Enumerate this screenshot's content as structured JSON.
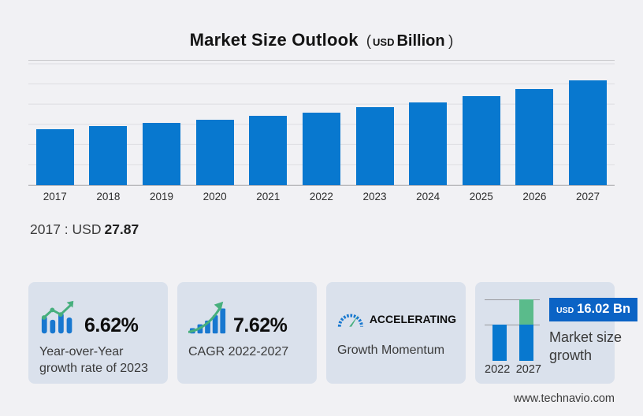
{
  "title": {
    "text": "Market Size Outlook",
    "unit_prefix": "(",
    "unit_currency": "USD",
    "unit_label": "Billion",
    "unit_suffix": ")"
  },
  "chart_data": {
    "type": "bar",
    "title": "Market Size Outlook (USD Billion)",
    "categories": [
      "2017",
      "2018",
      "2019",
      "2020",
      "2021",
      "2022",
      "2023",
      "2024",
      "2025",
      "2026",
      "2027"
    ],
    "values": [
      27.87,
      29.2,
      30.7,
      32.3,
      34.2,
      36.11,
      38.5,
      41.1,
      44.2,
      47.8,
      52.13
    ],
    "xlabel": "",
    "ylabel": "",
    "ylim": [
      0,
      62.5
    ],
    "grid": true,
    "legend": "none",
    "bar_color": "#0878cf",
    "annotation": "2017 : USD 27.87"
  },
  "callout": {
    "prefix": "2017 : USD",
    "value": "27.87"
  },
  "cards": [
    {
      "icon": "bar-chart-trend-up-icon",
      "value": "6.62%",
      "label": "Year-over-Year growth rate of 2023"
    },
    {
      "icon": "ascending-bars-arrow-icon",
      "value": "7.62%",
      "label": "CAGR 2022-2027"
    },
    {
      "icon": "speedometer-icon",
      "value": "ACCELERATING",
      "label": "Growth Momentum"
    },
    {
      "icon": "mini-growth-chart",
      "badge": {
        "currency": "USD",
        "amount": "16.02 Bn"
      },
      "label": "Market size growth",
      "mini_chart": {
        "categories": [
          "2022",
          "2027"
        ],
        "base_value": 36.11,
        "growth_value": 16.02,
        "base_color": "#0878cf",
        "growth_color": "#5abb8b"
      }
    }
  ],
  "footer": {
    "website": "www.technavio.com"
  },
  "colors": {
    "background": "#f1f1f4",
    "card_background": "#dae1ec",
    "bar_blue": "#0878cf",
    "accent_green": "#47af7d",
    "badge_blue": "#0b63c5",
    "gridline": "#dddde1"
  }
}
